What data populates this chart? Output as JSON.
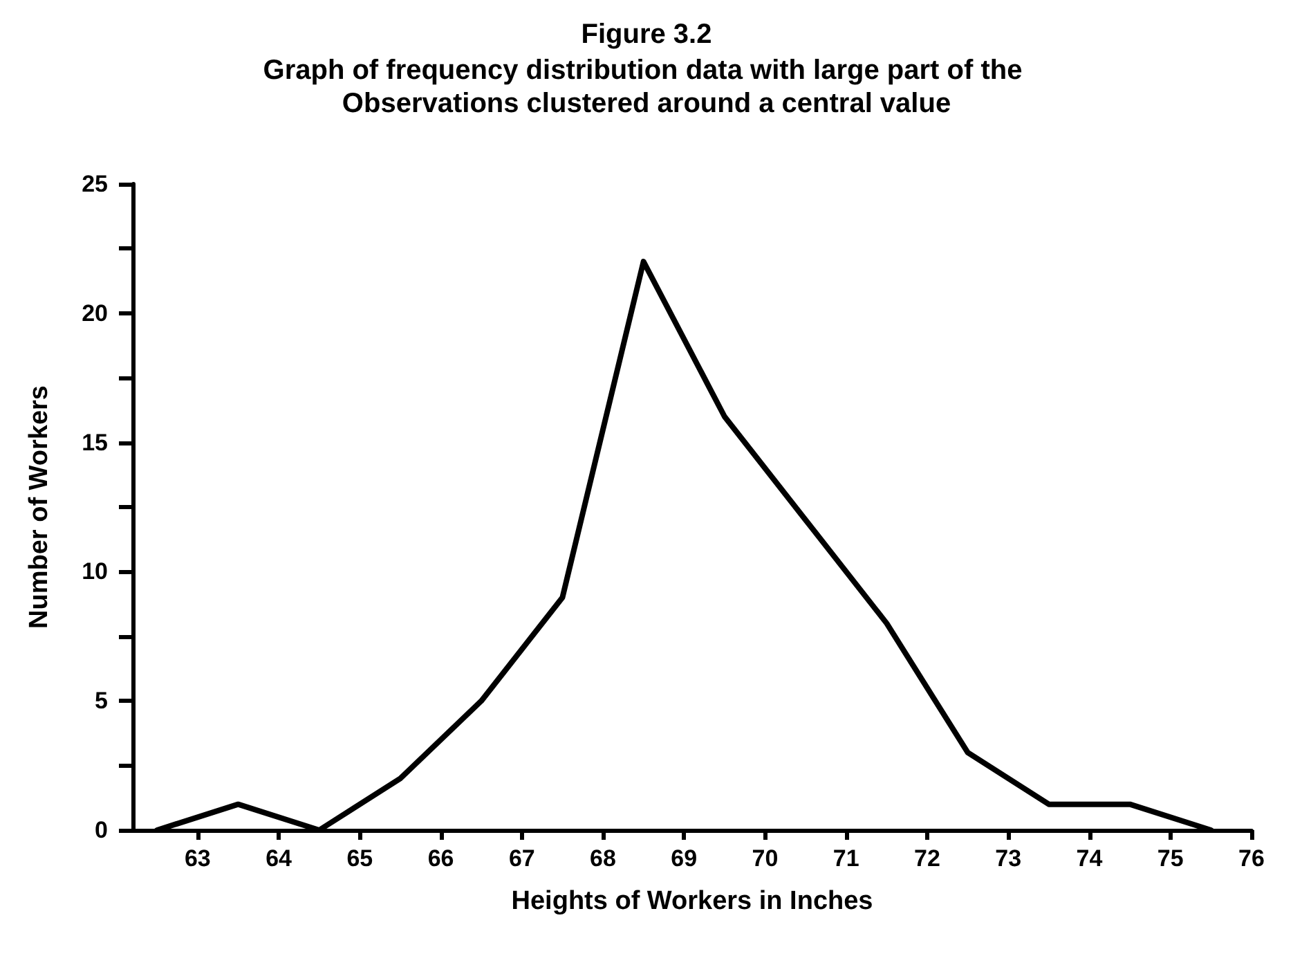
{
  "chart_data": {
    "type": "line",
    "title": "Figure 3.2",
    "subtitle": "Graph of frequency distribution data with large part of the Observations clustered around a central value",
    "xlabel": "Heights of Workers in Inches",
    "ylabel": "Number of Workers",
    "x": [
      62.5,
      63.5,
      64.5,
      65.5,
      66.5,
      67.5,
      68.5,
      69.5,
      70.5,
      71.5,
      72.5,
      73.5,
      74.5,
      75.5
    ],
    "series": [
      {
        "color": "#000000",
        "values": [
          0,
          1,
          0,
          2,
          5,
          9,
          22,
          16,
          12,
          8,
          3,
          1,
          1,
          0
        ]
      }
    ],
    "xlim": [
      62.2,
      76
    ],
    "xticks": [
      63,
      64,
      65,
      66,
      67,
      68,
      69,
      70,
      71,
      72,
      73,
      74,
      75,
      76
    ],
    "ylim": [
      0,
      25
    ],
    "yticks": [
      0,
      {
        "value": 2.5,
        "label": null
      },
      5,
      {
        "value": 7.5,
        "label": null
      },
      10,
      {
        "value": 12.5,
        "label": null
      },
      15,
      {
        "value": 17.5,
        "label": null
      },
      20,
      {
        "value": 22.5,
        "label": null
      },
      25
    ],
    "grid": false,
    "marker": "none",
    "line_style": "solid"
  }
}
